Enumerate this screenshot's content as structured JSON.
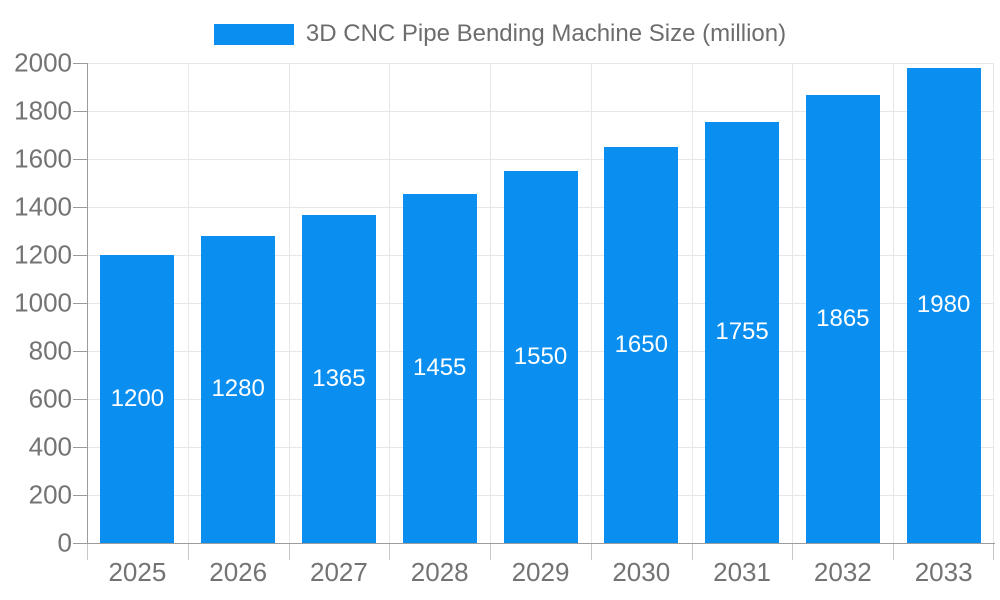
{
  "legend": {
    "label": "3D CNC Pipe Bending Machine Size (million)"
  },
  "chart_data": {
    "type": "bar",
    "title": "3D CNC Pipe Bending Machine Size (million)",
    "series_name": "3D CNC Pipe Bending Machine Size (million)",
    "categories": [
      "2025",
      "2026",
      "2027",
      "2028",
      "2029",
      "2030",
      "2031",
      "2032",
      "2033"
    ],
    "values": [
      1200,
      1280,
      1365,
      1455,
      1550,
      1650,
      1755,
      1865,
      1980
    ],
    "xlabel": "",
    "ylabel": "",
    "ylim": [
      0,
      2000
    ],
    "ytick_step": 200,
    "yticks": [
      0,
      200,
      400,
      600,
      800,
      1000,
      1200,
      1400,
      1600,
      1800,
      2000
    ],
    "grid": true,
    "legend_position": "top-center",
    "value_label_position": "inside-center",
    "colors": {
      "bar_color": "#0a8ff0",
      "grid": "#e7e7e7",
      "axis": "#9c9c9c",
      "tick": "#c9c9c9",
      "axis_text": "#737373",
      "legend_text": "#6d6d6d",
      "value_label": "#ffffff",
      "background": "#ffffff"
    }
  }
}
